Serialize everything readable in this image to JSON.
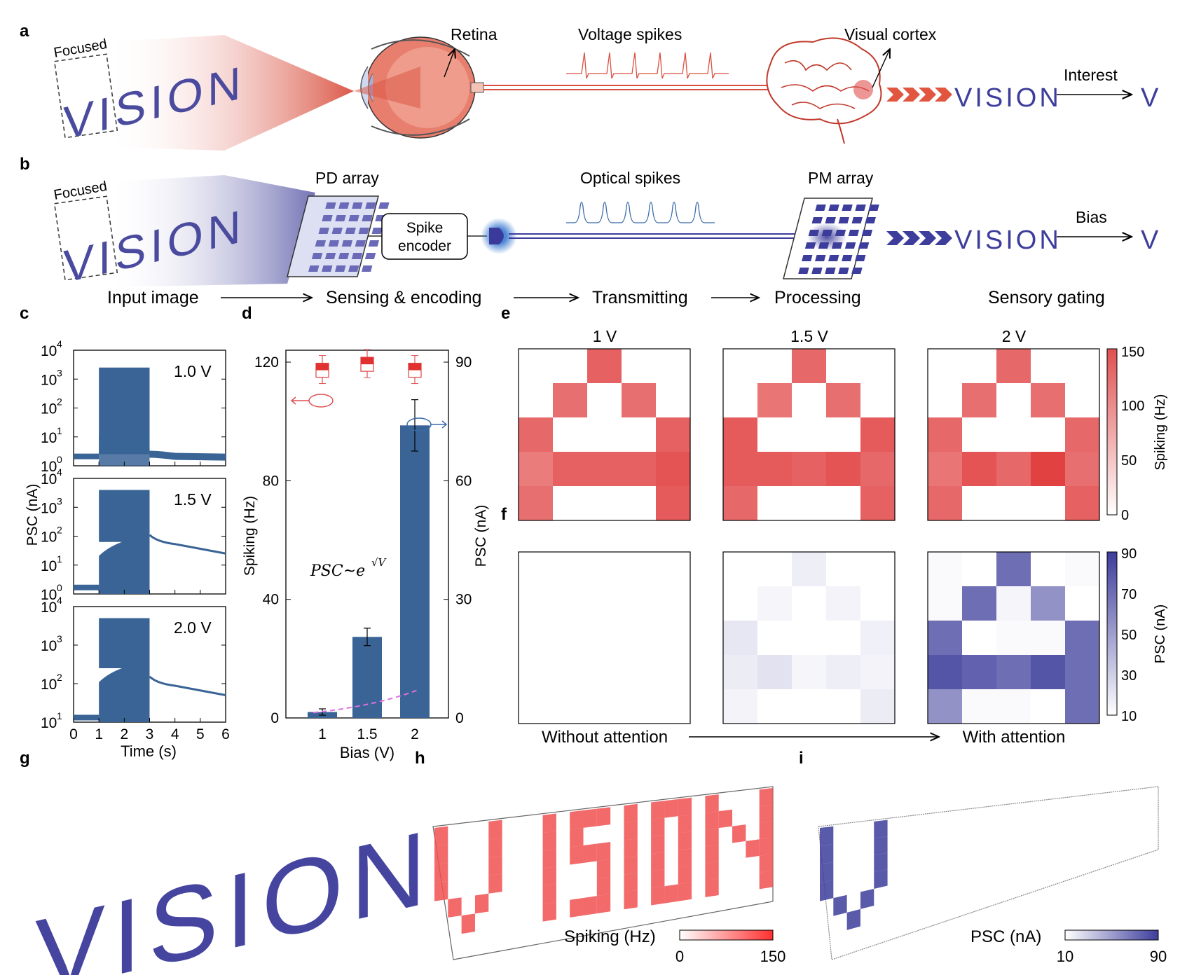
{
  "panel_letters": [
    "a",
    "b",
    "c",
    "d",
    "e",
    "f",
    "g",
    "h",
    "i"
  ],
  "panel_a": {
    "focused_label": "Focused",
    "vision_word": "VISION",
    "retina_label": "Retina",
    "spikes_label": "Voltage spikes",
    "cortex_label": "Visual cortex",
    "output_word": "VISION",
    "gate_label": "Interest",
    "gated_letter": "V"
  },
  "panel_b": {
    "focused_label": "Focused",
    "vision_word": "VISION",
    "pd_label": "PD array",
    "encoder_line1": "Spike",
    "encoder_line2": "encoder",
    "spikes_label": "Optical spikes",
    "pm_label": "PM array",
    "output_word": "VISION",
    "gate_label": "Bias",
    "gated_letter": "V",
    "stages": [
      "Input image",
      "Sensing & encoding",
      "Transmitting",
      "Processing",
      "Sensory gating"
    ]
  },
  "panel_c": {
    "ylabel": "PSC (nA)",
    "xlabel": "Time (s)",
    "xticks": [
      "0",
      "1",
      "2",
      "3",
      "4",
      "5",
      "6"
    ],
    "subplots": [
      {
        "label": "1.0 V",
        "yticks": [
          "10",
          "10",
          "10",
          "10",
          "10"
        ],
        "exps": [
          "4",
          "3",
          "2",
          "1",
          "0"
        ]
      },
      {
        "label": "1.5 V",
        "yticks": [
          "10",
          "10",
          "10",
          "10",
          "10"
        ],
        "exps": [
          "4",
          "3",
          "2",
          "1",
          "0"
        ]
      },
      {
        "label": "2.0 V",
        "yticks": [
          "10",
          "10",
          "10",
          "10"
        ],
        "exps": [
          "4",
          "3",
          "2",
          "1"
        ]
      }
    ]
  },
  "chart_data": {
    "type": "bar",
    "categories": [
      "1",
      "1.5",
      "2"
    ],
    "xlabel": "Bias (V)",
    "ylabel": "Spiking (Hz)",
    "y2label": "PSC (nA)",
    "ylim": [
      0,
      120
    ],
    "y2lim": [
      0,
      90
    ],
    "yticks": [
      "0",
      "40",
      "80",
      "120"
    ],
    "y2ticks": [
      "0",
      "30",
      "60",
      "90"
    ],
    "series": [
      {
        "values": [
          1.5,
          20.5,
          74
        ],
        "errors": [
          0.8,
          2.2,
          6.5
        ]
      },
      {
        "values": [
          117.5,
          119.5,
          117.5
        ]
      }
    ],
    "fit_label_base": "PSC~e",
    "fit_label_exp": "√V"
  },
  "panel_e": {
    "titles": [
      "1 V",
      "1.5 V",
      "2 V"
    ],
    "cbar_label": "Spiking (Hz)",
    "cbar_ticks": [
      "150",
      "100",
      "50",
      "0"
    ],
    "max": 150,
    "grids": [
      [
        [
          0,
          0,
          120,
          0,
          0
        ],
        [
          0,
          110,
          0,
          110,
          0
        ],
        [
          115,
          0,
          0,
          0,
          120
        ],
        [
          100,
          120,
          120,
          120,
          130
        ],
        [
          110,
          0,
          0,
          0,
          125
        ]
      ],
      [
        [
          0,
          0,
          115,
          0,
          0
        ],
        [
          0,
          105,
          0,
          110,
          0
        ],
        [
          125,
          0,
          0,
          0,
          125
        ],
        [
          125,
          125,
          120,
          130,
          115
        ],
        [
          115,
          0,
          0,
          0,
          120
        ]
      ],
      [
        [
          0,
          0,
          115,
          0,
          0
        ],
        [
          0,
          110,
          0,
          110,
          0
        ],
        [
          115,
          0,
          0,
          0,
          115
        ],
        [
          105,
          130,
          115,
          145,
          110
        ],
        [
          115,
          0,
          0,
          0,
          120
        ]
      ]
    ]
  },
  "panel_f": {
    "cbar_label": "PSC (nA)",
    "cbar_ticks": [
      "90",
      "70",
      "50",
      "30",
      "10"
    ],
    "min": 10,
    "max": 90,
    "grids": [
      [
        [
          0,
          0,
          0,
          0,
          0
        ],
        [
          0,
          0,
          0,
          0,
          0
        ],
        [
          0,
          0,
          0,
          0,
          0
        ],
        [
          0,
          0,
          0,
          0,
          0
        ],
        [
          0,
          0,
          0,
          0,
          0
        ]
      ],
      [
        [
          0,
          0,
          17,
          0,
          0
        ],
        [
          0,
          14,
          0,
          15,
          0
        ],
        [
          20,
          0,
          0,
          0,
          16
        ],
        [
          18,
          22,
          14,
          17,
          15
        ],
        [
          15,
          0,
          0,
          0,
          18
        ]
      ],
      [
        [
          12,
          0,
          70,
          0,
          12
        ],
        [
          12,
          70,
          14,
          55,
          0
        ],
        [
          70,
          0,
          12,
          12,
          70
        ],
        [
          80,
          75,
          70,
          80,
          70
        ],
        [
          55,
          12,
          12,
          0,
          70
        ]
      ]
    ],
    "left_label": "Without attention",
    "right_label": "With attention"
  },
  "panel_g": {
    "word": "VISION"
  },
  "panel_h": {
    "cbar_label": "Spiking (Hz)",
    "cbar_min": "0",
    "cbar_max": "150"
  },
  "panel_i": {
    "cbar_label": "PSC (nA)",
    "cbar_min": "10",
    "cbar_max": "90"
  },
  "colors": {
    "red": "#e05050",
    "blue": "#3d3d9c",
    "dark_blue": "#3a6496",
    "pink_dash": "#e070e0"
  }
}
